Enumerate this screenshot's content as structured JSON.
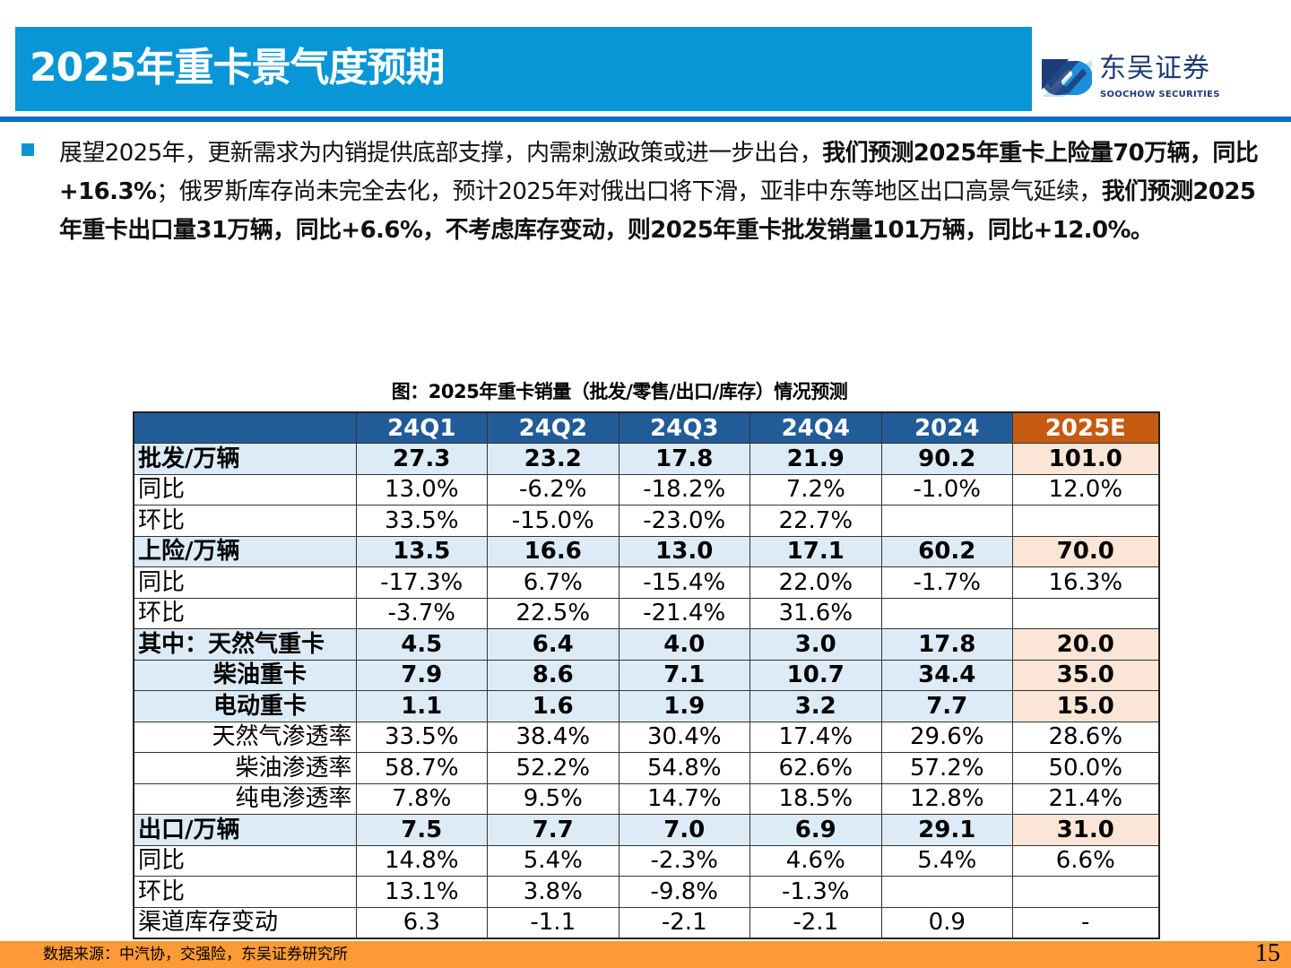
{
  "title": "2025年重卡景气度预期",
  "logo": {
    "cn": "东吴证券",
    "en": "SOOCHOW SECURITIES",
    "colors": [
      "#1E3C78",
      "#1C8FD8"
    ]
  },
  "intro": [
    {
      "t": "展望2025年，更新需求为内销提供底部支撑，内需刺激政策或进一步出台，",
      "b": false
    },
    {
      "t": "我们预测2025年重卡上险量70万辆，同比+16.3%",
      "b": true
    },
    {
      "t": "；俄罗斯库存尚未完全去化，预计2025年对俄出口将下滑，亚非中东等地区出口高景气延续，",
      "b": false
    },
    {
      "t": "我们预测2025年重卡出口量31万辆，同比+6.6%，不考虑库存变动，则2025年重卡批发销量101万辆，同比+12.0%。",
      "b": true
    }
  ],
  "caption": "图：2025年重卡销量（批发/零售/出口/库存）情况预测",
  "table": {
    "headers": [
      "",
      "24Q1",
      "24Q2",
      "24Q3",
      "24Q4",
      "2024",
      "2025E"
    ],
    "rows": [
      {
        "style": "bold",
        "align": "",
        "cells": [
          "批发/万辆",
          "27.3",
          "23.2",
          "17.8",
          "21.9",
          "90.2",
          "101.0"
        ]
      },
      {
        "style": "",
        "align": "",
        "cells": [
          "同比",
          "13.0%",
          "-6.2%",
          "-18.2%",
          "7.2%",
          "-1.0%",
          "12.0%"
        ]
      },
      {
        "style": "",
        "align": "",
        "cells": [
          "环比",
          "33.5%",
          "-15.0%",
          "-23.0%",
          "22.7%",
          "",
          ""
        ]
      },
      {
        "style": "bold",
        "align": "",
        "cells": [
          "上险/万辆",
          "13.5",
          "16.6",
          "13.0",
          "17.1",
          "60.2",
          "70.0"
        ]
      },
      {
        "style": "",
        "align": "",
        "cells": [
          "同比",
          "-17.3%",
          "6.7%",
          "-15.4%",
          "22.0%",
          "-1.7%",
          "16.3%"
        ]
      },
      {
        "style": "",
        "align": "",
        "cells": [
          "环比",
          "-3.7%",
          "22.5%",
          "-21.4%",
          "31.6%",
          "",
          ""
        ]
      },
      {
        "style": "bold",
        "align": "",
        "cells": [
          "其中：天然气重卡",
          "4.5",
          "6.4",
          "4.0",
          "3.0",
          "17.8",
          "20.0"
        ]
      },
      {
        "style": "bold",
        "align": "ind",
        "cells": [
          "柴油重卡",
          "7.9",
          "8.6",
          "7.1",
          "10.7",
          "34.4",
          "35.0"
        ]
      },
      {
        "style": "bold",
        "align": "ind",
        "cells": [
          "电动重卡",
          "1.1",
          "1.6",
          "1.9",
          "3.2",
          "7.7",
          "15.0"
        ]
      },
      {
        "style": "",
        "align": "r",
        "cells": [
          "天然气渗透率",
          "33.5%",
          "38.4%",
          "30.4%",
          "17.4%",
          "29.6%",
          "28.6%"
        ]
      },
      {
        "style": "",
        "align": "r",
        "cells": [
          "柴油渗透率",
          "58.7%",
          "52.2%",
          "54.8%",
          "62.6%",
          "57.2%",
          "50.0%"
        ]
      },
      {
        "style": "",
        "align": "r",
        "cells": [
          "纯电渗透率",
          "7.8%",
          "9.5%",
          "14.7%",
          "18.5%",
          "12.8%",
          "21.4%"
        ]
      },
      {
        "style": "bold",
        "align": "",
        "cells": [
          "出口/万辆",
          "7.5",
          "7.7",
          "7.0",
          "6.9",
          "29.1",
          "31.0"
        ]
      },
      {
        "style": "",
        "align": "",
        "cells": [
          "同比",
          "14.8%",
          "5.4%",
          "-2.3%",
          "4.6%",
          "5.4%",
          "6.6%"
        ]
      },
      {
        "style": "",
        "align": "",
        "cells": [
          "环比",
          "13.1%",
          "3.8%",
          "-9.8%",
          "-1.3%",
          "",
          ""
        ]
      },
      {
        "style": "",
        "align": "",
        "cells": [
          "渠道库存变动",
          "6.3",
          "-1.1",
          "-2.1",
          "-2.1",
          "0.9",
          "-"
        ]
      }
    ]
  },
  "footer": {
    "source": "数据来源：中汽协，交强险，东吴证券研究所",
    "page": "15"
  },
  "colors": {
    "title_bar": "#0896D6",
    "header": "#215C98",
    "highlight_header": "#C55A11",
    "highlight_cell": "#FBE5D6",
    "bold_row": "#DDEBF7",
    "footer": "#FB9A36"
  }
}
